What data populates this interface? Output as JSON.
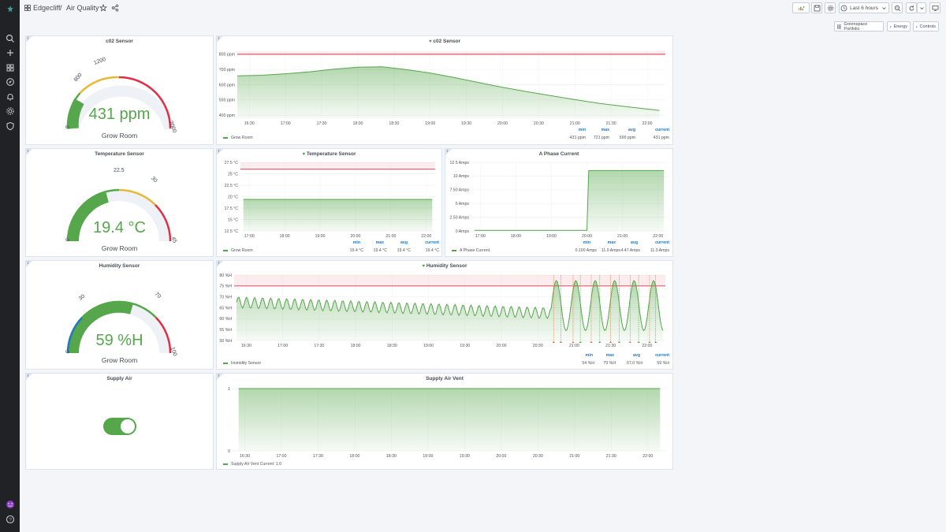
{
  "breadcrumb": {
    "folder": "Edgecliff",
    "separator": "/",
    "dashboard": "Air Quality"
  },
  "toolbar": {
    "time_range": "Last 6 hours"
  },
  "links": [
    "Greenspace Portfolio",
    "Energy",
    "Controls"
  ],
  "colors": {
    "green": "#56a64b",
    "threshold_red": "#e02f44",
    "orange": "#eab839",
    "blue": "#1f78c1"
  },
  "icons": {
    "logo": "grafana-logo-icon",
    "search": "search-icon",
    "add": "plus-icon",
    "dashboards": "apps-icon",
    "explore": "compass-icon",
    "alerting": "bell-icon",
    "config": "gear-icon",
    "admin": "shield-icon",
    "profile": "avatar-icon",
    "help": "question-icon"
  },
  "gauges": {
    "co2": {
      "title": "c02 Sensor",
      "value": "431 ppm",
      "sub": "Grow Room",
      "ticks": [
        "0",
        "800",
        "1200",
        "2000"
      ]
    },
    "temp": {
      "title": "Temperature Sensor",
      "value": "19.4 °C",
      "sub": "Grow Room",
      "ticks": [
        "0",
        "22.5",
        "30",
        "45"
      ]
    },
    "humidity": {
      "title": "Humidity Sensor",
      "value": "59 %H",
      "sub": "Grow Room",
      "ticks": [
        "0",
        "30",
        "70",
        "100"
      ]
    }
  },
  "supply_air": {
    "title": "Supply Air",
    "state_on": true
  },
  "stat_headers": {
    "min": "min",
    "max": "max",
    "avg": "avg",
    "current": "current"
  },
  "charts": {
    "co2": {
      "title": "c02 Sensor",
      "legend": "Grow Room",
      "stats": {
        "min": "431 ppm",
        "max": "721 ppm",
        "avg": "599 ppm",
        "current": "431 ppm"
      }
    },
    "temp": {
      "title": "Temperature Sensor",
      "legend": "Grow Room",
      "stats": {
        "min": "19.4 °C",
        "max": "19.4 °C",
        "avg": "19.4 °C",
        "current": "19.4 °C"
      }
    },
    "phase": {
      "title": "A Phase Current",
      "legend": "A Phase Current",
      "stats": {
        "min": "0.100 Amps",
        "max": "11.0 Amps",
        "avg": "4.47 Amps",
        "current": "11.0 Amps"
      }
    },
    "humidity": {
      "title": "Humidity Sensor",
      "legend": "Humidity Sensor",
      "stats": {
        "min": "54 %H",
        "max": "79 %H",
        "avg": "67.0 %H",
        "current": "59 %H"
      }
    },
    "supply": {
      "title": "Supply Air Vent",
      "legend": "Supply Air Vent  Current: 1.0"
    }
  },
  "chart_data": [
    {
      "type": "line",
      "title": "c02 Sensor",
      "series": [
        {
          "name": "Grow Room",
          "x": [
            "16:20",
            "16:40",
            "17:00",
            "17:20",
            "17:40",
            "18:00",
            "18:20",
            "18:40",
            "19:00",
            "19:20",
            "19:40",
            "20:00",
            "20:20",
            "20:40",
            "21:00",
            "21:20",
            "21:40",
            "22:00",
            "22:10"
          ],
          "values": [
            658,
            662,
            672,
            685,
            702,
            715,
            718,
            700,
            677,
            647,
            615,
            583,
            555,
            528,
            502,
            478,
            458,
            440,
            431
          ]
        }
      ],
      "threshold": 800,
      "yticks": [
        "400 ppm",
        "500 ppm",
        "600 ppm",
        "700 ppm",
        "800 ppm"
      ],
      "ylim": [
        380,
        820
      ],
      "xticks": [
        "16:30",
        "17:00",
        "17:30",
        "18:00",
        "18:30",
        "19:00",
        "19:30",
        "20:00",
        "20:30",
        "21:00",
        "21:30",
        "22:00"
      ]
    },
    {
      "type": "line",
      "title": "Temperature Sensor",
      "series": [
        {
          "name": "Grow Room",
          "x": [
            "16:50",
            "22:10"
          ],
          "values": [
            19.4,
            19.4
          ]
        }
      ],
      "threshold": 26,
      "yticks": [
        "12.5 °C",
        "15 °C",
        "17.5 °C",
        "20 °C",
        "22.5 °C",
        "25 °C",
        "27.5 °C"
      ],
      "ylim": [
        12.5,
        27.5
      ],
      "xticks": [
        "17:00",
        "18:00",
        "19:00",
        "20:00",
        "21:00",
        "22:00"
      ]
    },
    {
      "type": "line",
      "title": "A Phase Current",
      "series": [
        {
          "name": "A Phase Current",
          "x": [
            "16:50",
            "19:55",
            "20:00",
            "20:03",
            "22:10"
          ],
          "values": [
            0.1,
            0.1,
            0.1,
            11.0,
            11.0
          ]
        }
      ],
      "yticks": [
        "0 Amps",
        "2.50 Amps",
        "5 Amps",
        "7.50 Amps",
        "10 Amps",
        "12.5 Amps"
      ],
      "ylim": [
        0,
        12.5
      ],
      "xticks": [
        "17:00",
        "18:00",
        "19:00",
        "20:00",
        "21:00",
        "22:00"
      ]
    },
    {
      "type": "line",
      "title": "Humidity Sensor",
      "series": [
        {
          "name": "Humidity Sensor"
        }
      ],
      "threshold": 75,
      "yticks": [
        "50 %H",
        "55 %H",
        "60 %H",
        "65 %H",
        "70 %H",
        "75 %H",
        "80 %H"
      ],
      "ylim": [
        50,
        80
      ],
      "xticks": [
        "16:30",
        "17:00",
        "17:30",
        "18:00",
        "18:30",
        "19:00",
        "19:30",
        "20:00",
        "20:30",
        "21:00",
        "21:30",
        "22:00"
      ]
    },
    {
      "type": "area",
      "title": "Supply Air Vent",
      "series": [
        {
          "name": "Supply Air Vent",
          "x": [
            "16:25",
            "22:10"
          ],
          "values": [
            1,
            1
          ]
        }
      ],
      "yticks": [
        "0",
        "1"
      ],
      "ylim": [
        0,
        1
      ],
      "xticks": [
        "16:30",
        "17:00",
        "17:30",
        "18:00",
        "18:30",
        "19:00",
        "19:30",
        "20:00",
        "20:30",
        "21:00",
        "21:30",
        "22:00"
      ]
    }
  ]
}
